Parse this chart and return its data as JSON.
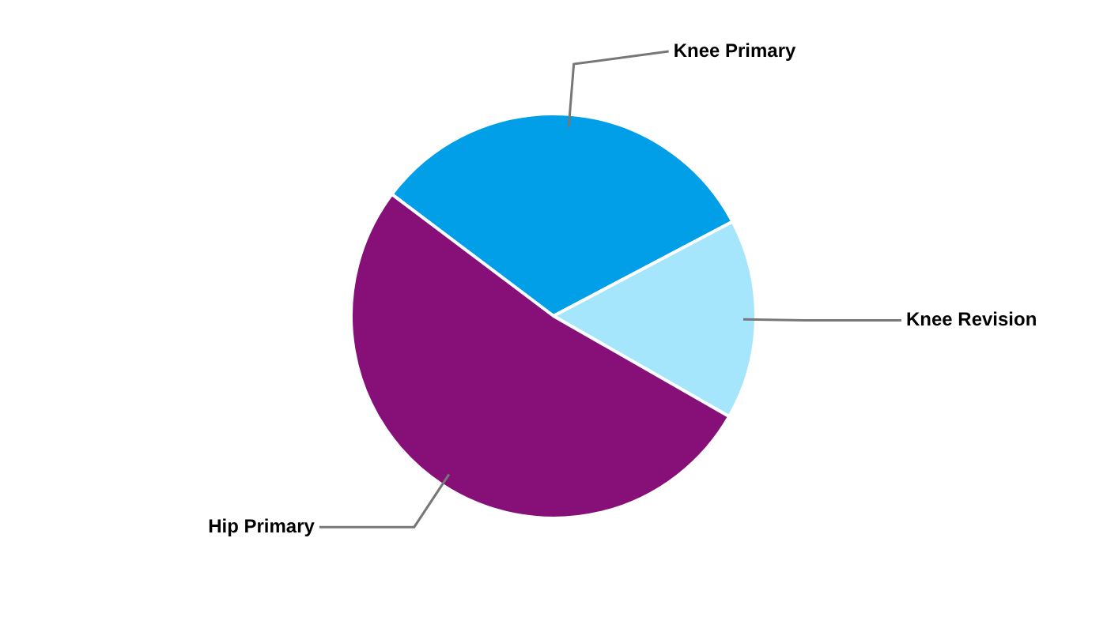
{
  "chart_data": {
    "type": "pie",
    "categories": [
      "Knee Primary",
      "Knee Revision",
      "Hip Primary"
    ],
    "values": [
      32,
      16,
      52
    ],
    "colors": [
      "#009fe8",
      "#a6e6fc",
      "#870f78"
    ],
    "legend": false
  }
}
